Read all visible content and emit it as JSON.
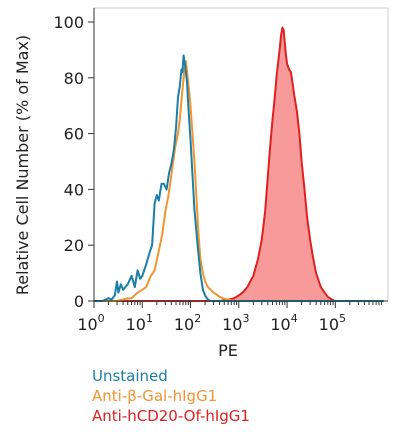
{
  "chart_data": {
    "type": "line",
    "x_scale": "log",
    "xlabel": "PE",
    "ylabel": "Relative Cell Number (% of Max)",
    "xlim": [
      1,
      1000000
    ],
    "ylim": [
      0,
      105
    ],
    "y_ticks": [
      0,
      20,
      40,
      60,
      80,
      100
    ],
    "x_ticks": [
      {
        "base": "10",
        "exp": "0",
        "value": 1
      },
      {
        "base": "10",
        "exp": "1",
        "value": 10
      },
      {
        "base": "10",
        "exp": "2",
        "value": 100
      },
      {
        "base": "10",
        "exp": "3",
        "value": 1000
      },
      {
        "base": "10",
        "exp": "4",
        "value": 10000
      },
      {
        "base": "10",
        "exp": "5",
        "value": 100000
      }
    ],
    "grid": false,
    "legend_position": "bottom-left",
    "series": [
      {
        "name": "Unstained",
        "color": "#1a7fa6",
        "fill": false,
        "points": [
          [
            1,
            0
          ],
          [
            1.5,
            0
          ],
          [
            2,
            1
          ],
          [
            2.3,
            0.5
          ],
          [
            2.7,
            2
          ],
          [
            3,
            7
          ],
          [
            3.2,
            3
          ],
          [
            3.6,
            6
          ],
          [
            4,
            4
          ],
          [
            5,
            6
          ],
          [
            6,
            9
          ],
          [
            7,
            5
          ],
          [
            8,
            11
          ],
          [
            9,
            8
          ],
          [
            10,
            9
          ],
          [
            12,
            13
          ],
          [
            14,
            17
          ],
          [
            16,
            20
          ],
          [
            18,
            35
          ],
          [
            20,
            38
          ],
          [
            22,
            36
          ],
          [
            25,
            42
          ],
          [
            28,
            42
          ],
          [
            32,
            40
          ],
          [
            36,
            46
          ],
          [
            40,
            49
          ],
          [
            45,
            54
          ],
          [
            50,
            62
          ],
          [
            55,
            73
          ],
          [
            60,
            77
          ],
          [
            65,
            83
          ],
          [
            68,
            82
          ],
          [
            72,
            88
          ],
          [
            78,
            84
          ],
          [
            85,
            78
          ],
          [
            90,
            70
          ],
          [
            100,
            58
          ],
          [
            110,
            45
          ],
          [
            120,
            33
          ],
          [
            140,
            20
          ],
          [
            160,
            10
          ],
          [
            180,
            4
          ],
          [
            200,
            2
          ],
          [
            230,
            0.5
          ],
          [
            260,
            0
          ],
          [
            1000000,
            0
          ]
        ]
      },
      {
        "name": "Anti-β-Gal-hIgG1",
        "color": "#f0952f",
        "fill": false,
        "points": [
          [
            1,
            0
          ],
          [
            2,
            0
          ],
          [
            3,
            0
          ],
          [
            4,
            0.5
          ],
          [
            5,
            1
          ],
          [
            6,
            1
          ],
          [
            8,
            3
          ],
          [
            10,
            4
          ],
          [
            12,
            5
          ],
          [
            15,
            9
          ],
          [
            18,
            11
          ],
          [
            22,
            18
          ],
          [
            26,
            24
          ],
          [
            30,
            32
          ],
          [
            35,
            38
          ],
          [
            40,
            45
          ],
          [
            48,
            55
          ],
          [
            55,
            60
          ],
          [
            60,
            65
          ],
          [
            65,
            72
          ],
          [
            70,
            78
          ],
          [
            75,
            83
          ],
          [
            80,
            86
          ],
          [
            85,
            82
          ],
          [
            90,
            78
          ],
          [
            95,
            74
          ],
          [
            100,
            70
          ],
          [
            110,
            60
          ],
          [
            120,
            50
          ],
          [
            130,
            40
          ],
          [
            145,
            25
          ],
          [
            160,
            15
          ],
          [
            180,
            10
          ],
          [
            200,
            7
          ],
          [
            230,
            5
          ],
          [
            260,
            4
          ],
          [
            300,
            3
          ],
          [
            400,
            1.5
          ],
          [
            500,
            0.8
          ],
          [
            700,
            0.3
          ],
          [
            1000,
            0
          ],
          [
            1000000,
            0
          ]
        ]
      },
      {
        "name": "Anti-hCD20-Of-hIgG1",
        "color": "#e02020",
        "fill_color": "#f89a9a",
        "fill": true,
        "points": [
          [
            1,
            0
          ],
          [
            200,
            0
          ],
          [
            400,
            0
          ],
          [
            600,
            0.5
          ],
          [
            800,
            1
          ],
          [
            1000,
            2
          ],
          [
            1200,
            3
          ],
          [
            1500,
            5
          ],
          [
            2000,
            9
          ],
          [
            2500,
            15
          ],
          [
            3000,
            22
          ],
          [
            3500,
            32
          ],
          [
            4000,
            45
          ],
          [
            4500,
            56
          ],
          [
            5000,
            65
          ],
          [
            5500,
            72
          ],
          [
            6000,
            80
          ],
          [
            6500,
            85
          ],
          [
            7000,
            90
          ],
          [
            7500,
            95
          ],
          [
            8000,
            98
          ],
          [
            8500,
            97
          ],
          [
            9000,
            92
          ],
          [
            9500,
            88
          ],
          [
            10000,
            85
          ],
          [
            11000,
            83
          ],
          [
            12000,
            82
          ],
          [
            13000,
            78
          ],
          [
            14000,
            74
          ],
          [
            16000,
            68
          ],
          [
            18000,
            60
          ],
          [
            20000,
            50
          ],
          [
            23000,
            40
          ],
          [
            26000,
            30
          ],
          [
            30000,
            22
          ],
          [
            35000,
            15
          ],
          [
            40000,
            10
          ],
          [
            50000,
            5
          ],
          [
            60000,
            3
          ],
          [
            70000,
            1.5
          ],
          [
            85000,
            0.5
          ],
          [
            100000,
            0
          ],
          [
            1000000,
            0
          ]
        ]
      }
    ]
  }
}
